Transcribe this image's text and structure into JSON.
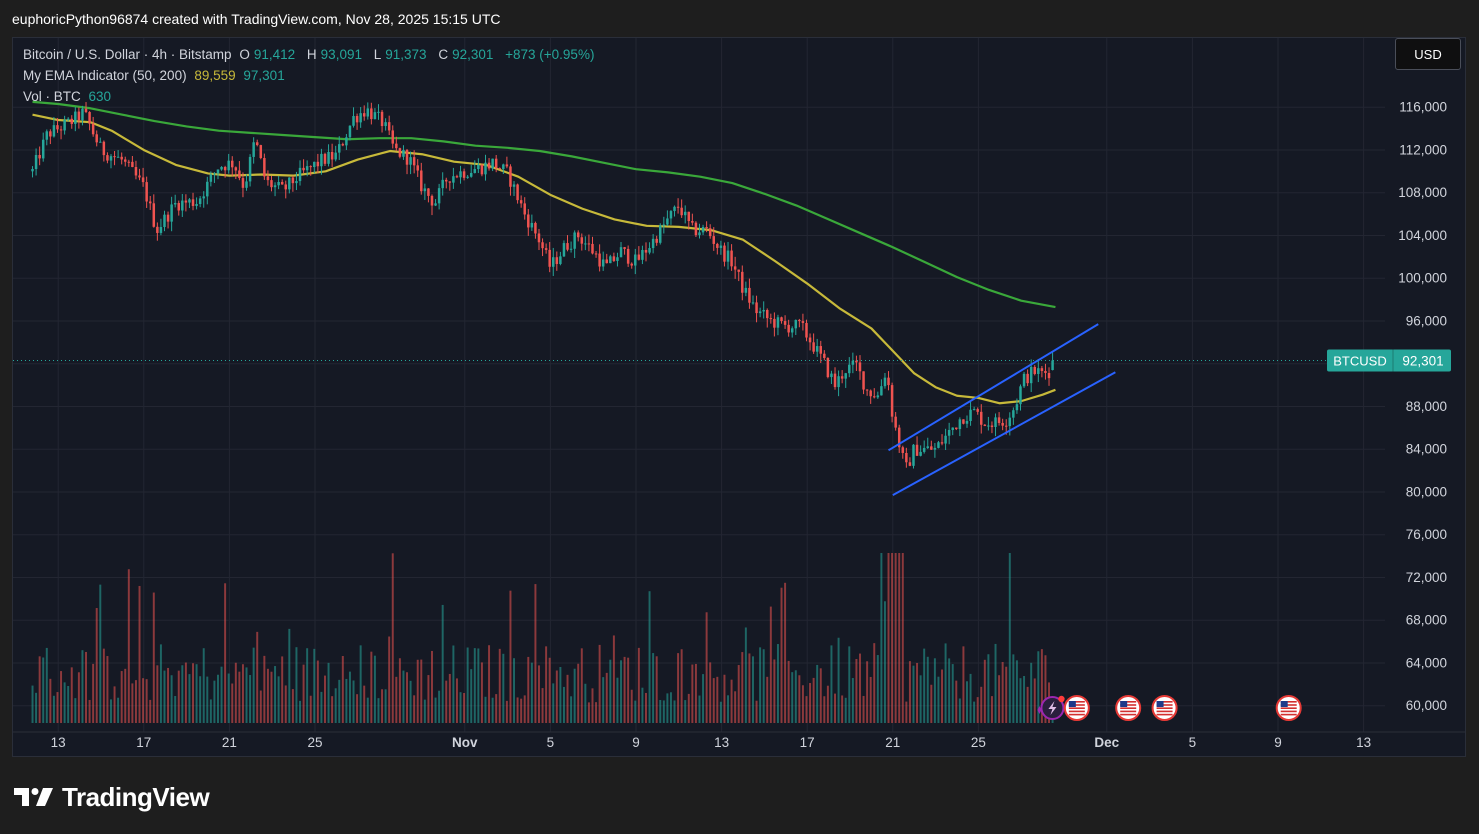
{
  "header": {
    "attribution": "euphoricPython96874 created with TradingView.com, Nov 28, 2025 15:15 UTC"
  },
  "legend": {
    "symbol_title": "Bitcoin / U.S. Dollar · 4h · Bitstamp",
    "ohlc": [
      {
        "key": "O",
        "value": "91,412"
      },
      {
        "key": "H",
        "value": "93,091"
      },
      {
        "key": "L",
        "value": "91,373"
      },
      {
        "key": "C",
        "value": "92,301"
      }
    ],
    "change": "+873 (+0.95%)",
    "ema_label": "My EMA Indicator (50, 200)",
    "ema50_value": "89,559",
    "ema200_value": "97,301",
    "vol_label": "Vol · BTC",
    "vol_value": "630"
  },
  "currency_button": "USD",
  "price_tag": {
    "symbol": "BTCUSD",
    "price": "92,301"
  },
  "footer": {
    "brand": "TradingView"
  },
  "colors": {
    "background": "#151924",
    "grid": "#232632",
    "up": "#26a69a",
    "down": "#ef5350",
    "ema50": "#c7b93a",
    "ema200": "#3aa83a",
    "channel": "#2962ff"
  },
  "icons": [
    "flag-us-icon",
    "event-lightning-icon",
    "tradingview-logo-icon"
  ],
  "chart_data": {
    "type": "candlestick",
    "price_ticks": [
      116000,
      112000,
      108000,
      104000,
      100000,
      96000,
      92000,
      88000,
      84000,
      80000,
      76000,
      72000,
      68000,
      64000,
      60000
    ],
    "x_ticks": [
      {
        "label": "13",
        "day": 13
      },
      {
        "label": "17",
        "day": 17
      },
      {
        "label": "21",
        "day": 21
      },
      {
        "label": "25",
        "day": 25
      },
      {
        "label": "Nov",
        "day": 32
      },
      {
        "label": "5",
        "day": 36
      },
      {
        "label": "9",
        "day": 40
      },
      {
        "label": "13",
        "day": 44
      },
      {
        "label": "17",
        "day": 48
      },
      {
        "label": "21",
        "day": 52
      },
      {
        "label": "25",
        "day": 56
      },
      {
        "label": "Dec",
        "day": 62
      },
      {
        "label": "5",
        "day": 66
      },
      {
        "label": "9",
        "day": 70
      },
      {
        "label": "13",
        "day": 74
      }
    ],
    "price_anchors": [
      [
        11.8,
        110000
      ],
      [
        12.5,
        113500
      ],
      [
        13.5,
        114500
      ],
      [
        14.2,
        115500
      ],
      [
        15.0,
        112000
      ],
      [
        16.0,
        111000
      ],
      [
        17.0,
        108500
      ],
      [
        17.6,
        104500
      ],
      [
        18.5,
        107000
      ],
      [
        19.5,
        107200
      ],
      [
        20.5,
        110500
      ],
      [
        21.2,
        110800
      ],
      [
        21.7,
        108500
      ],
      [
        22.2,
        113000
      ],
      [
        22.7,
        109000
      ],
      [
        23.5,
        108200
      ],
      [
        24.2,
        109500
      ],
      [
        25.3,
        111000
      ],
      [
        26.0,
        111500
      ],
      [
        26.8,
        115000
      ],
      [
        27.4,
        115800
      ],
      [
        28.2,
        114500
      ],
      [
        28.7,
        112000
      ],
      [
        29.4,
        111200
      ],
      [
        30.0,
        108500
      ],
      [
        30.6,
        107000
      ],
      [
        31.2,
        109500
      ],
      [
        32.0,
        110000
      ],
      [
        32.8,
        110400
      ],
      [
        33.3,
        110800
      ],
      [
        34.0,
        109800
      ],
      [
        34.8,
        106000
      ],
      [
        35.5,
        103500
      ],
      [
        36.0,
        101000
      ],
      [
        36.7,
        103000
      ],
      [
        37.3,
        104000
      ],
      [
        38.0,
        102500
      ],
      [
        38.6,
        101000
      ],
      [
        39.3,
        102500
      ],
      [
        40.0,
        101500
      ],
      [
        40.8,
        103500
      ],
      [
        41.5,
        105500
      ],
      [
        42.0,
        106800
      ],
      [
        42.6,
        104500
      ],
      [
        43.3,
        104500
      ],
      [
        44.0,
        102500
      ],
      [
        44.5,
        101500
      ],
      [
        45.0,
        99000
      ],
      [
        45.6,
        97000
      ],
      [
        46.3,
        96000
      ],
      [
        47.0,
        95500
      ],
      [
        47.7,
        95500
      ],
      [
        48.2,
        94000
      ],
      [
        48.8,
        92000
      ],
      [
        49.3,
        90000
      ],
      [
        49.8,
        91500
      ],
      [
        50.3,
        91800
      ],
      [
        50.8,
        89500
      ],
      [
        51.3,
        89000
      ],
      [
        51.7,
        91500
      ],
      [
        52.0,
        87000
      ],
      [
        52.3,
        84500
      ],
      [
        52.6,
        82000
      ],
      [
        53.0,
        84000
      ],
      [
        53.5,
        84000
      ],
      [
        54.0,
        84000
      ],
      [
        54.6,
        85500
      ],
      [
        55.2,
        87000
      ],
      [
        55.8,
        87500
      ],
      [
        56.3,
        86500
      ],
      [
        56.8,
        86500
      ],
      [
        57.3,
        86800
      ],
      [
        57.7,
        88000
      ],
      [
        58.1,
        90500
      ],
      [
        58.6,
        91300
      ],
      [
        59.0,
        91100
      ],
      [
        59.4,
        91400
      ],
      [
        59.6,
        92301
      ]
    ],
    "ema50": [
      [
        11.8,
        115300
      ],
      [
        13.0,
        114800
      ],
      [
        14.5,
        114600
      ],
      [
        15.5,
        113800
      ],
      [
        17.0,
        112000
      ],
      [
        18.5,
        110600
      ],
      [
        20.0,
        109800
      ],
      [
        21.0,
        109600
      ],
      [
        22.5,
        109700
      ],
      [
        24.0,
        109600
      ],
      [
        25.5,
        110000
      ],
      [
        27.0,
        111100
      ],
      [
        28.5,
        111900
      ],
      [
        30.0,
        111600
      ],
      [
        31.5,
        110900
      ],
      [
        33.0,
        110600
      ],
      [
        34.5,
        109500
      ],
      [
        36.0,
        107800
      ],
      [
        37.5,
        106500
      ],
      [
        39.0,
        105500
      ],
      [
        40.5,
        104900
      ],
      [
        42.0,
        104800
      ],
      [
        43.5,
        104500
      ],
      [
        45.0,
        103600
      ],
      [
        46.5,
        101600
      ],
      [
        48.0,
        99500
      ],
      [
        49.5,
        97200
      ],
      [
        51.0,
        95300
      ],
      [
        52.0,
        93200
      ],
      [
        53.0,
        91100
      ],
      [
        54.0,
        89800
      ],
      [
        55.0,
        89000
      ],
      [
        56.0,
        88800
      ],
      [
        57.0,
        88300
      ],
      [
        58.0,
        88500
      ],
      [
        59.0,
        89100
      ],
      [
        59.6,
        89559
      ]
    ],
    "ema200": [
      [
        11.8,
        116500
      ],
      [
        13.0,
        116300
      ],
      [
        14.5,
        115900
      ],
      [
        16.0,
        115300
      ],
      [
        17.5,
        114700
      ],
      [
        19.0,
        114200
      ],
      [
        20.5,
        113800
      ],
      [
        22.0,
        113600
      ],
      [
        23.5,
        113400
      ],
      [
        25.0,
        113200
      ],
      [
        26.5,
        113000
      ],
      [
        28.0,
        113100
      ],
      [
        29.5,
        113100
      ],
      [
        31.0,
        112800
      ],
      [
        32.5,
        112400
      ],
      [
        34.0,
        112200
      ],
      [
        35.5,
        111900
      ],
      [
        37.0,
        111400
      ],
      [
        38.5,
        110800
      ],
      [
        40.0,
        110200
      ],
      [
        41.5,
        109900
      ],
      [
        43.0,
        109500
      ],
      [
        44.5,
        108900
      ],
      [
        46.0,
        107900
      ],
      [
        47.5,
        106800
      ],
      [
        49.0,
        105500
      ],
      [
        50.5,
        104200
      ],
      [
        52.0,
        102900
      ],
      [
        53.5,
        101500
      ],
      [
        55.0,
        100100
      ],
      [
        56.5,
        98900
      ],
      [
        58.0,
        97900
      ],
      [
        59.6,
        97301
      ]
    ],
    "channel": {
      "upper": [
        [
          51.8,
          83900
        ],
        [
          61.6,
          95700
        ]
      ],
      "lower": [
        [
          52.0,
          79700
        ],
        [
          62.4,
          91200
        ]
      ]
    },
    "volume_scale_top": 250,
    "event_flag_days": [
      60.6,
      63.0,
      64.7,
      70.5
    ]
  }
}
